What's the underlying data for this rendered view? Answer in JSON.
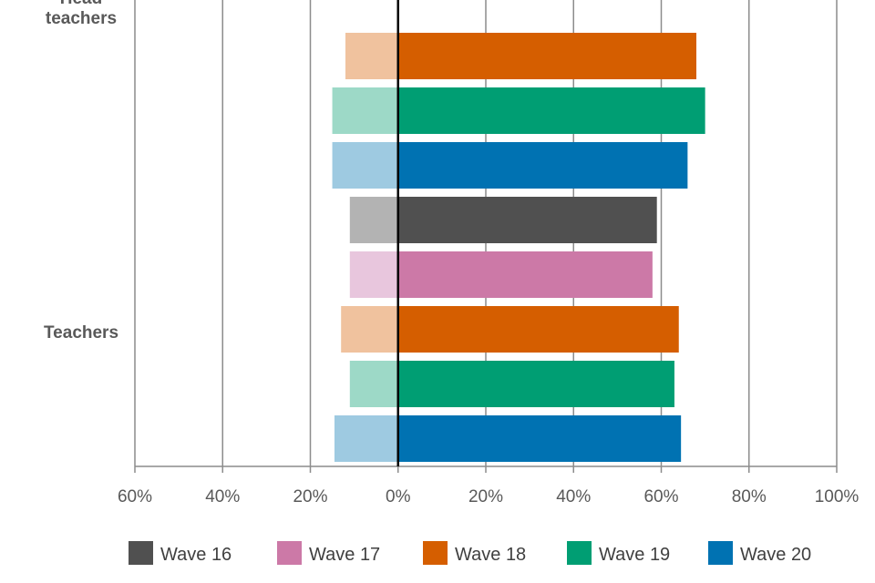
{
  "chart_data": {
    "type": "bar",
    "orientation": "horizontal-diverging",
    "groups": [
      "Head teachers",
      "Teachers"
    ],
    "group_label_lines": [
      [
        "Head",
        "teachers"
      ],
      [
        "Teachers"
      ]
    ],
    "series": [
      {
        "name": "Wave 16",
        "negative_color": "#b3b3b3",
        "positive_color": "#505050",
        "values": {
          "Head teachers": [
            null,
            null
          ],
          "Teachers": [
            -11,
            59
          ]
        }
      },
      {
        "name": "Wave 17",
        "negative_color": "#e8c6dd",
        "positive_color": "#cc79a7",
        "values": {
          "Head teachers": [
            null,
            null
          ],
          "Teachers": [
            -11,
            58
          ]
        }
      },
      {
        "name": "Wave 18",
        "negative_color": "#f0c29e",
        "positive_color": "#d55e00",
        "values": {
          "Head teachers": [
            -12,
            68
          ],
          "Teachers": [
            -13,
            64
          ]
        }
      },
      {
        "name": "Wave 19",
        "negative_color": "#9dd9c7",
        "positive_color": "#009e73",
        "values": {
          "Head teachers": [
            -15,
            70
          ],
          "Teachers": [
            -11,
            63
          ]
        }
      },
      {
        "name": "Wave 20",
        "negative_color": "#9ecae1",
        "positive_color": "#0072b2",
        "values": {
          "Head teachers": [
            -15,
            66
          ],
          "Teachers": [
            -14.5,
            64.5
          ]
        }
      }
    ],
    "xlim": [
      -60,
      100
    ],
    "x_ticks": [
      -60,
      -40,
      -20,
      0,
      20,
      40,
      60,
      80,
      100
    ],
    "x_tick_labels": [
      "60%",
      "40%",
      "20%",
      "0%",
      "20%",
      "40%",
      "60%",
      "80%",
      "100%"
    ],
    "legend": [
      "Wave 16",
      "Wave 17",
      "Wave 18",
      "Wave 19",
      "Wave 20"
    ],
    "legend_position": "bottom",
    "grid": true
  }
}
